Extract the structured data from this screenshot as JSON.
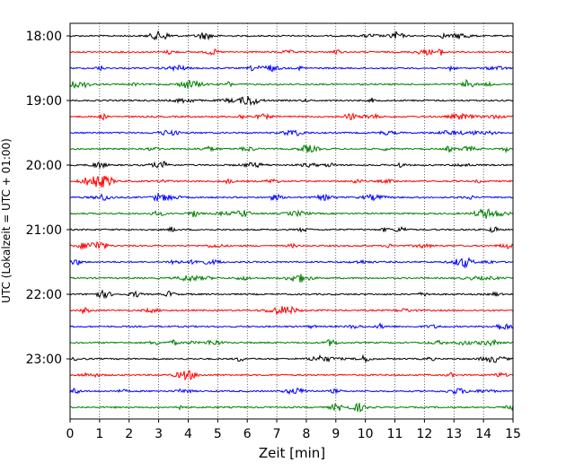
{
  "chart_data": {
    "type": "line",
    "title": "",
    "xlabel": "Zeit  [min]",
    "ylabel": "UTC (Lokalzeit = UTC + 01:00)",
    "xlim": [
      0,
      15
    ],
    "x_ticks": [
      0,
      1,
      2,
      3,
      4,
      5,
      6,
      7,
      8,
      9,
      10,
      11,
      12,
      13,
      14,
      15
    ],
    "y_ticks": [
      "18:00",
      "19:00",
      "20:00",
      "21:00",
      "22:00",
      "23:00"
    ],
    "grid": "vertical dotted at each minute",
    "legend": "none",
    "trace_colors": [
      "#000000",
      "#ff0000",
      "#0000ff",
      "#008000"
    ],
    "traces": [
      {
        "start": "18:00"
      },
      {
        "start": "18:15"
      },
      {
        "start": "18:30"
      },
      {
        "start": "18:45"
      },
      {
        "start": "19:00"
      },
      {
        "start": "19:15"
      },
      {
        "start": "19:30"
      },
      {
        "start": "19:45"
      },
      {
        "start": "20:00"
      },
      {
        "start": "20:15"
      },
      {
        "start": "20:30"
      },
      {
        "start": "20:45"
      },
      {
        "start": "21:00"
      },
      {
        "start": "21:15"
      },
      {
        "start": "21:30"
      },
      {
        "start": "21:45"
      },
      {
        "start": "22:00"
      },
      {
        "start": "22:15"
      },
      {
        "start": "22:30"
      },
      {
        "start": "22:45"
      },
      {
        "start": "23:00"
      },
      {
        "start": "23:15"
      },
      {
        "start": "23:30"
      },
      {
        "start": "23:45"
      }
    ]
  }
}
